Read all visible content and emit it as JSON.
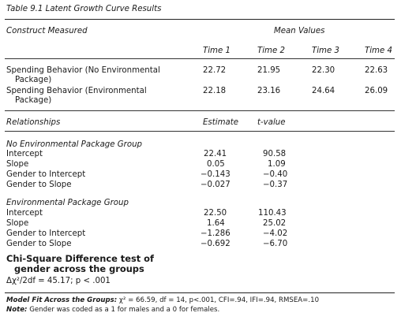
{
  "table": {
    "title": "Table 9.1 Latent Growth Curve Results",
    "construct_header": "Construct Measured",
    "mean_values_header": "Mean Values",
    "time_headers": [
      "Time 1",
      "Time 2",
      "Time 3",
      "Time 4"
    ],
    "constructs": [
      {
        "label_line1": "Spending Behavior (No Environmental",
        "label_line2": "Package)",
        "values": [
          "22.72",
          "21.95",
          "22.30",
          "22.63"
        ]
      },
      {
        "label_line1": "Spending Behavior (Environmental",
        "label_line2": "Package)",
        "values": [
          "22.18",
          "23.16",
          "24.64",
          "26.09"
        ]
      }
    ],
    "relationships_header": "Relationships",
    "estimate_header": "Estimate",
    "tvalue_header": "t-value",
    "groups": [
      {
        "name": "No Environmental Package Group",
        "rows": [
          {
            "label": "Intercept",
            "estimate": "22.41",
            "t": "90.58"
          },
          {
            "label": "Slope",
            "estimate": "0.05",
            "t": "1.09"
          },
          {
            "label": "Gender to Intercept",
            "estimate": "−0.143",
            "t": "−0.40"
          },
          {
            "label": "Gender to Slope",
            "estimate": "−0.027",
            "t": "−0.37"
          }
        ]
      },
      {
        "name": "Environmental Package Group",
        "rows": [
          {
            "label": "Intercept",
            "estimate": "22.50",
            "t": "110.43"
          },
          {
            "label": "Slope",
            "estimate": "1.64",
            "t": "25.02"
          },
          {
            "label": "Gender to Intercept",
            "estimate": "−1.286",
            "t": "−4.02"
          },
          {
            "label": "Gender to Slope",
            "estimate": "−0.692",
            "t": "−6.70"
          }
        ]
      }
    ],
    "chi_square": {
      "line1": "Chi-Square Difference test of",
      "line2": "gender across the groups",
      "stat": "Δχ²/2df = 45.17; p < .001"
    },
    "footnotes": {
      "fit_label": "Model Fit Across the Groups:",
      "fit_text": " χ² = 66.59, df = 14, p<.001, CFI=.94, IFI=.94, RMSEA=.10",
      "note_label": "Note:",
      "note_text": " Gender was coded as a 1 for males and a 0 for females."
    }
  }
}
